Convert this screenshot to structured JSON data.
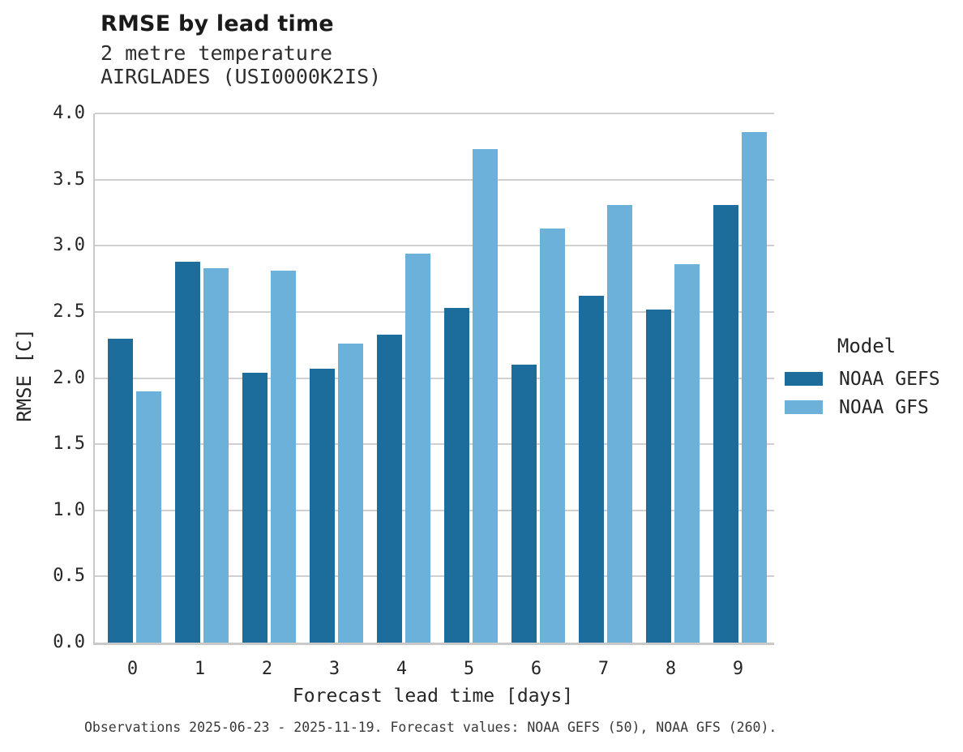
{
  "figure": {
    "title": "RMSE by lead time",
    "subtitle_line1": "2 metre temperature",
    "subtitle_line2": "AIRGLADES (USI0000K2IS)",
    "caption": "Observations 2025-06-23 - 2025-11-19. Forecast values: NOAA GEFS (50), NOAA GFS (260)."
  },
  "chart_data": {
    "type": "bar",
    "title": "RMSE by lead time",
    "subtitle": "2 metre temperature / AIRGLADES (USI0000K2IS)",
    "categories": [
      "0",
      "1",
      "2",
      "3",
      "4",
      "5",
      "6",
      "7",
      "8",
      "9"
    ],
    "series": [
      {
        "name": "NOAA GEFS",
        "color": "#1c6d9c",
        "values": [
          2.3,
          2.88,
          2.04,
          2.07,
          2.33,
          2.53,
          2.1,
          2.62,
          2.52,
          3.31
        ]
      },
      {
        "name": "NOAA GFS",
        "color": "#6cb1d9",
        "values": [
          1.9,
          2.83,
          2.81,
          2.26,
          2.94,
          3.73,
          3.13,
          3.31,
          2.86,
          3.86
        ]
      }
    ],
    "xlabel": "Forecast lead time [days]",
    "ylabel": "RMSE [C]",
    "ylim": [
      0,
      4.0
    ],
    "ytick_step": 0.5,
    "y_tick_labels": [
      "0.0",
      "0.5",
      "1.0",
      "1.5",
      "2.0",
      "2.5",
      "3.0",
      "3.5",
      "4.0"
    ],
    "grid": true,
    "legend_title": "Model",
    "legend_position": "right-center"
  },
  "legend": {
    "title": "Model",
    "items": [
      {
        "label": "NOAA GEFS",
        "color": "#1c6d9c"
      },
      {
        "label": "NOAA GFS",
        "color": "#6cb1d9"
      }
    ]
  }
}
